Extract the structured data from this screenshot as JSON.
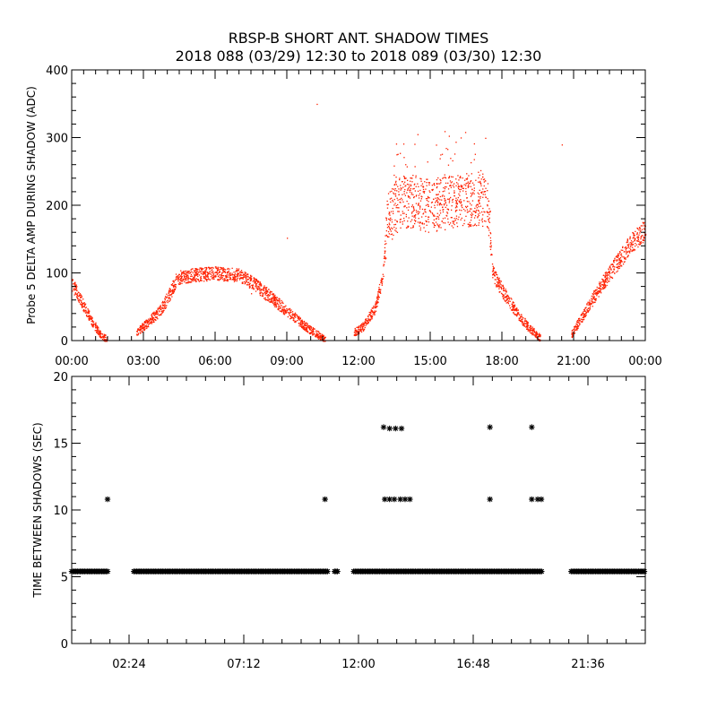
{
  "title": {
    "line1": "RBSP-B SHORT ANT. SHADOW TIMES",
    "line2": "2018 088 (03/29) 12:30 to 2018 089 (03/30) 12:30"
  },
  "chart_data": [
    {
      "type": "scatter",
      "ylabel": "Probe 5 DELTA AMP DURING SHADOW (ADC)",
      "xlabel": "",
      "x_unit": "hours",
      "xlim": [
        0,
        24
      ],
      "ylim": [
        0,
        400
      ],
      "x_ticks": [
        0,
        3,
        6,
        9,
        12,
        15,
        18,
        21,
        24
      ],
      "x_tick_labels": [
        "00:00",
        "03:00",
        "06:00",
        "09:00",
        "12:00",
        "15:00",
        "18:00",
        "21:00",
        "00:00"
      ],
      "y_ticks": [
        0,
        100,
        200,
        300,
        400
      ],
      "y_tick_labels": [
        "0",
        "100",
        "200",
        "300",
        "400"
      ],
      "point_color": "#ff2000",
      "envelope": [
        [
          0.0,
          85
        ],
        [
          0.3,
          65
        ],
        [
          0.6,
          45
        ],
        [
          0.9,
          25
        ],
        [
          1.2,
          10
        ],
        [
          1.45,
          2
        ],
        [
          2.7,
          12
        ],
        [
          3.2,
          28
        ],
        [
          3.7,
          45
        ],
        [
          4.1,
          70
        ],
        [
          4.4,
          93
        ],
        [
          5.0,
          97
        ],
        [
          6.0,
          100
        ],
        [
          7.0,
          97
        ],
        [
          7.6,
          85
        ],
        [
          8.4,
          62
        ],
        [
          9.2,
          38
        ],
        [
          9.9,
          18
        ],
        [
          10.6,
          2
        ],
        [
          11.8,
          12
        ],
        [
          12.2,
          22
        ],
        [
          12.7,
          50
        ],
        [
          13.0,
          95
        ],
        [
          13.2,
          180
        ],
        [
          13.7,
          205
        ],
        [
          14.3,
          205
        ],
        [
          15.0,
          200
        ],
        [
          16.0,
          205
        ],
        [
          17.0,
          210
        ],
        [
          17.4,
          205
        ],
        [
          17.6,
          100
        ],
        [
          18.0,
          75
        ],
        [
          18.6,
          42
        ],
        [
          19.1,
          20
        ],
        [
          19.6,
          4
        ],
        [
          20.9,
          10
        ],
        [
          21.5,
          45
        ],
        [
          22.1,
          80
        ],
        [
          22.8,
          115
        ],
        [
          23.4,
          145
        ],
        [
          24.0,
          165
        ]
      ],
      "sparse_points": [
        [
          10.25,
          350
        ],
        [
          9.0,
          152
        ],
        [
          7.5,
          70
        ],
        [
          20.5,
          290
        ]
      ]
    },
    {
      "type": "scatter",
      "ylabel": "TIME BETWEEN SHADOWS (SEC)",
      "xlabel": "",
      "x_unit": "hours",
      "xlim": [
        0,
        24
      ],
      "ylim": [
        0,
        20
      ],
      "x_ticks": [
        2.4,
        7.2,
        12.0,
        16.8,
        21.6
      ],
      "x_tick_labels": [
        "02:24",
        "07:12",
        "12:00",
        "16:48",
        "21:36"
      ],
      "y_ticks": [
        0,
        5,
        10,
        15,
        20
      ],
      "y_tick_labels": [
        "0",
        "5",
        "10",
        "15",
        "20"
      ],
      "marker": "asterisk",
      "point_color": "#000000",
      "baseline_value": 5.4,
      "baseline_segments": [
        [
          0.0,
          1.55
        ],
        [
          2.6,
          10.7
        ],
        [
          11.0,
          11.15
        ],
        [
          11.8,
          19.7
        ],
        [
          20.9,
          24.0
        ]
      ],
      "points": [
        [
          1.5,
          10.8
        ],
        [
          10.6,
          10.8
        ],
        [
          13.05,
          16.2
        ],
        [
          13.3,
          16.1
        ],
        [
          13.55,
          16.1
        ],
        [
          13.8,
          16.1
        ],
        [
          13.1,
          10.8
        ],
        [
          13.3,
          10.8
        ],
        [
          13.5,
          10.8
        ],
        [
          13.75,
          10.8
        ],
        [
          13.95,
          10.8
        ],
        [
          14.15,
          10.8
        ],
        [
          17.5,
          16.2
        ],
        [
          17.5,
          10.8
        ],
        [
          19.25,
          16.2
        ],
        [
          19.25,
          10.8
        ],
        [
          19.5,
          10.8
        ],
        [
          19.65,
          10.8
        ]
      ]
    }
  ]
}
